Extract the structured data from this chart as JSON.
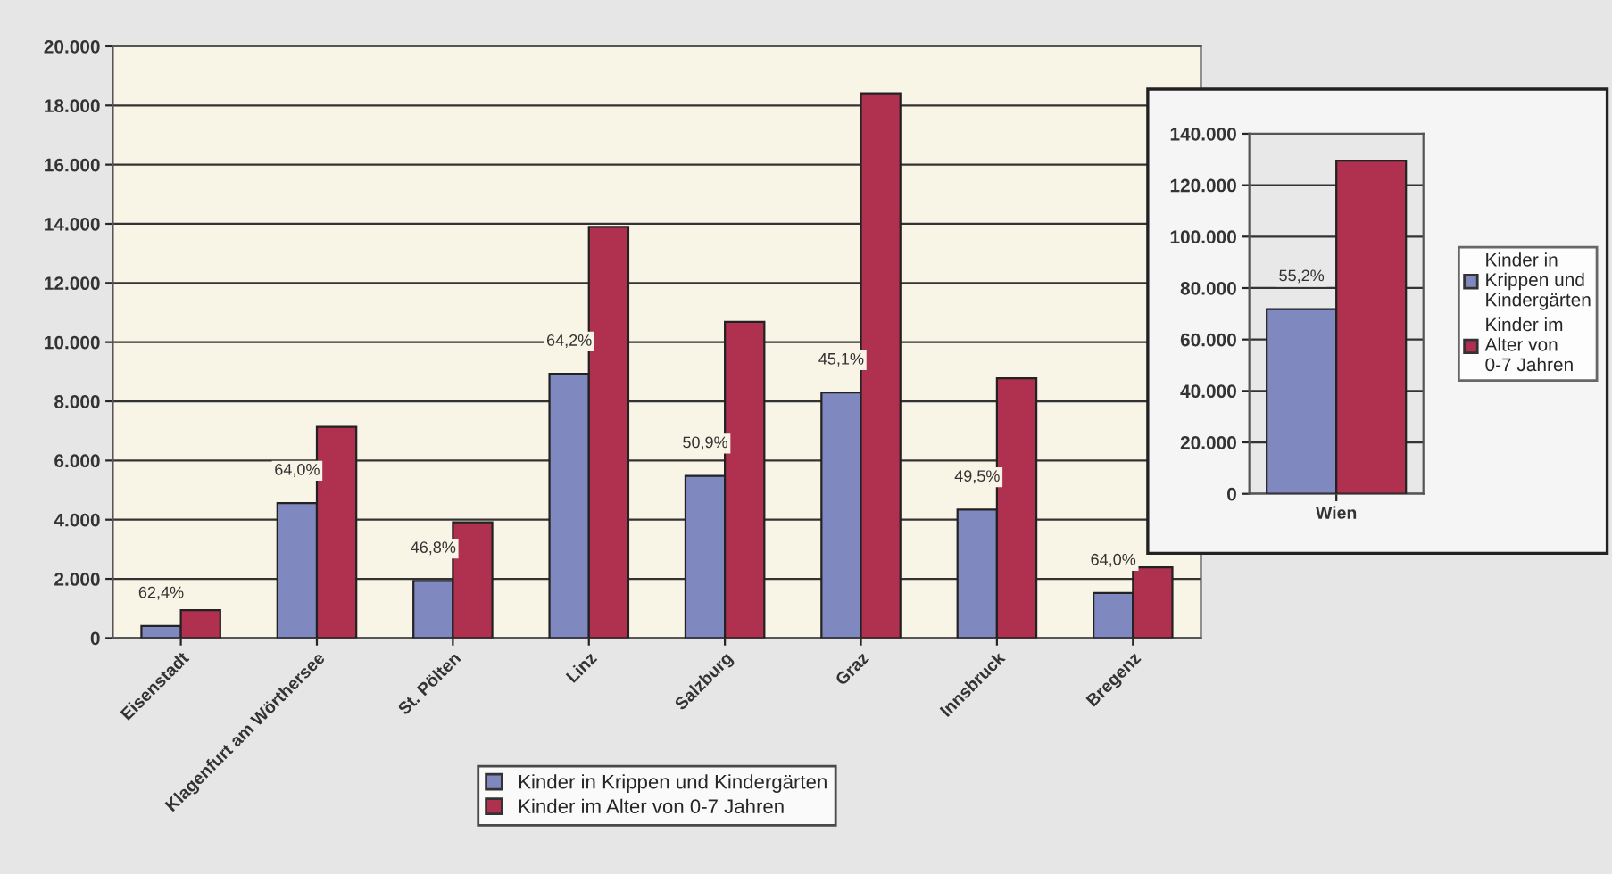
{
  "chart_data": [
    {
      "type": "bar",
      "categories": [
        "Eisenstadt",
        "Klagenfurt am Wörthersee",
        "St. Pölten",
        "Linz",
        "Salzburg",
        "Graz",
        "Innsbruck",
        "Bregenz"
      ],
      "series": [
        {
          "name": "Kinder in Krippen und Kindergärten",
          "color": "#8088c0",
          "values": [
            410,
            4560,
            1930,
            8930,
            5480,
            8300,
            4340,
            1520
          ]
        },
        {
          "name": "Kinder im Alter von 0-7 Jahren",
          "color": "#b03050",
          "values": [
            940,
            7140,
            3910,
            13900,
            10690,
            18410,
            8780,
            2390
          ]
        }
      ],
      "ylim": [
        0,
        20000
      ],
      "yticks": [
        {
          "value": 0,
          "label": "0"
        },
        {
          "value": 2000,
          "label": "2.000"
        },
        {
          "value": 4000,
          "label": "4.000"
        },
        {
          "value": 6000,
          "label": "6.000"
        },
        {
          "value": 8000,
          "label": "8.000"
        },
        {
          "value": 10000,
          "label": "10.000"
        },
        {
          "value": 12000,
          "label": "12.000"
        },
        {
          "value": 14000,
          "label": "14.000"
        },
        {
          "value": 16000,
          "label": "16.000"
        },
        {
          "value": 18000,
          "label": "18.000"
        },
        {
          "value": 20000,
          "label": "20.000"
        }
      ],
      "annotations": [
        {
          "text": "62,4%",
          "x": "Eisenstadt",
          "y": 410
        },
        {
          "text": "64,0%",
          "x": "Klagenfurt am Wörthersee",
          "y": 4560
        },
        {
          "text": "46,8%",
          "x": "St. Pölten",
          "y": 1930
        },
        {
          "text": "64,2%",
          "x": "Linz",
          "y": 8930
        },
        {
          "text": "50,9%",
          "x": "Salzburg",
          "y": 5480
        },
        {
          "text": "45,1%",
          "x": "Graz",
          "y": 8300
        },
        {
          "text": "49,5%",
          "x": "Innsbruck",
          "y": 4340
        },
        {
          "text": "64,0%",
          "x": "Bregenz",
          "y": 1520
        }
      ],
      "grid": "y",
      "legend": "bottom"
    },
    {
      "type": "bar",
      "categories": [
        "Wien"
      ],
      "series": [
        {
          "name": "Kinder in Krippen und Kindergärten",
          "color": "#8088c0",
          "values": [
            71800
          ]
        },
        {
          "name": "Kinder im Alter von 0-7 Jahren",
          "color": "#b03050",
          "values": [
            129500
          ]
        }
      ],
      "ylim": [
        0,
        140000
      ],
      "yticks": [
        {
          "value": 0,
          "label": "0"
        },
        {
          "value": 20000,
          "label": "20.000"
        },
        {
          "value": 40000,
          "label": "40.000"
        },
        {
          "value": 60000,
          "label": "60.000"
        },
        {
          "value": 80000,
          "label": "80.000"
        },
        {
          "value": 100000,
          "label": "100.000"
        },
        {
          "value": 120000,
          "label": "120.000"
        },
        {
          "value": 140000,
          "label": "140.000"
        }
      ],
      "annotations": [
        {
          "text": "55,2%",
          "x": "Wien",
          "y": 71800
        }
      ],
      "grid": "y",
      "legend": "right"
    }
  ]
}
